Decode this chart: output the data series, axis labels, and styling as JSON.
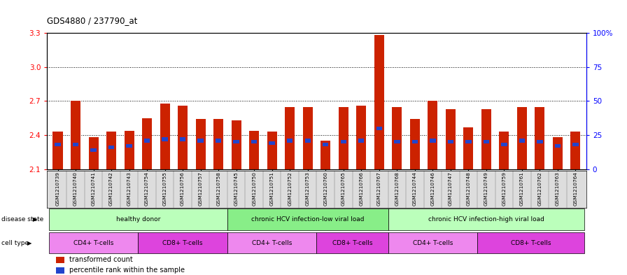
{
  "title": "GDS4880 / 237790_at",
  "samples": [
    "GSM1210739",
    "GSM1210740",
    "GSM1210741",
    "GSM1210742",
    "GSM1210743",
    "GSM1210754",
    "GSM1210755",
    "GSM1210756",
    "GSM1210757",
    "GSM1210758",
    "GSM1210745",
    "GSM1210750",
    "GSM1210751",
    "GSM1210752",
    "GSM1210753",
    "GSM1210760",
    "GSM1210765",
    "GSM1210766",
    "GSM1210767",
    "GSM1210768",
    "GSM1210744",
    "GSM1210746",
    "GSM1210747",
    "GSM1210748",
    "GSM1210749",
    "GSM1210759",
    "GSM1210761",
    "GSM1210762",
    "GSM1210763",
    "GSM1210764"
  ],
  "transformed_count": [
    2.43,
    2.7,
    2.38,
    2.43,
    2.44,
    2.55,
    2.68,
    2.66,
    2.54,
    2.54,
    2.53,
    2.44,
    2.43,
    2.65,
    2.65,
    2.35,
    2.65,
    2.66,
    3.28,
    2.65,
    2.54,
    2.7,
    2.63,
    2.47,
    2.63,
    2.43,
    2.65,
    2.65,
    2.38,
    2.43
  ],
  "percentile_rank": [
    18,
    18,
    14,
    16,
    17,
    21,
    22,
    22,
    21,
    21,
    20,
    20,
    19,
    21,
    21,
    18,
    20,
    21,
    30,
    20,
    20,
    21,
    20,
    20,
    20,
    18,
    21,
    20,
    17,
    18
  ],
  "ymin": 2.1,
  "ymax": 3.3,
  "yticks_left": [
    2.1,
    2.4,
    2.7,
    3.0,
    3.3
  ],
  "yticks_right_pct": [
    0,
    25,
    50,
    75,
    100
  ],
  "bar_color": "#CC2200",
  "percentile_color": "#2244CC",
  "bg_color": "#FFFFFF",
  "grid_lines": [
    2.4,
    2.7,
    3.0
  ],
  "disease_groups": [
    {
      "label": "healthy donor",
      "start": 0,
      "end": 9,
      "color": "#BBFFBB"
    },
    {
      "label": "chronic HCV infection-low viral load",
      "start": 10,
      "end": 18,
      "color": "#88EE88"
    },
    {
      "label": "chronic HCV infection-high viral load",
      "start": 19,
      "end": 29,
      "color": "#BBFFBB"
    }
  ],
  "cell_groups": [
    {
      "label": "CD4+ T-cells",
      "start": 0,
      "end": 4,
      "color": "#EE88EE"
    },
    {
      "label": "CD8+ T-cells",
      "start": 5,
      "end": 9,
      "color": "#DD44DD"
    },
    {
      "label": "CD4+ T-cells",
      "start": 10,
      "end": 14,
      "color": "#EE88EE"
    },
    {
      "label": "CD8+ T-cells",
      "start": 15,
      "end": 18,
      "color": "#DD44DD"
    },
    {
      "label": "CD4+ T-cells",
      "start": 19,
      "end": 23,
      "color": "#EE88EE"
    },
    {
      "label": "CD8+ T-cells",
      "start": 24,
      "end": 29,
      "color": "#DD44DD"
    }
  ],
  "xtick_bg": "#DDDDDD",
  "disease_state_label": "disease state",
  "cell_type_label": "cell type",
  "legend_items": [
    {
      "label": "transformed count",
      "color": "#CC2200"
    },
    {
      "label": "percentile rank within the sample",
      "color": "#2244CC"
    }
  ]
}
